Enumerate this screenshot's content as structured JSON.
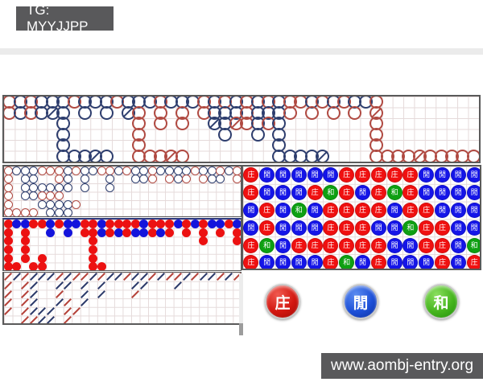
{
  "header": {
    "tg_label": "TG: MYYJJPP"
  },
  "footer": {
    "site_url": "www.aombj-entry.org"
  },
  "legend": {
    "banker": {
      "label": "庄",
      "color": "#d31710"
    },
    "player": {
      "label": "閒",
      "color": "#1d50d8"
    },
    "tie": {
      "label": "和",
      "color": "#46b51e"
    }
  },
  "colors": {
    "hollow_red": "#b04a42",
    "hollow_blue": "#2e3e6e",
    "solid_red": "#ec1111",
    "solid_blue": "#1414dc",
    "solid_green": "#0ea012",
    "badge_bg": "#59595b"
  },
  "roads": {
    "big_road": {
      "legend_note": "hollow circles, R/B uppercase = slashed (tie)",
      "rows": [
        "rbrbbbrbbbrbbbrbbbrbrbrbrbrrbrbrbbr.........",
        "rbrbBb.b.b.Br.r.r.rbbbrbbbr.r.r.r.R.........",
        ".....b......r.r.r..BbRrbrb........r.........",
        ".....b......r.......b..b.b........r.........",
        ".....b......r............b........r.........",
        ".....bbbBb..rrrRr........bbbbB....rrrrRrrrrr"
      ]
    },
    "small_road": {
      "rows": [
        "rbbbrrrbrbbrrbrbbrbbbbrbbrbr",
        "r.bb..rb.b..b..bbr.rbr.rbb.r",
        "r.bbbbbb.b..b...............",
        "r.bbrrr.....................",
        "r...bbbbr...................",
        "rrrr.bbb...................."
      ]
    },
    "solid_road": {
      "rows": [
        "rbbrrbrbbrrbrrrrbrrrbrbrbbrb",
        "r.r..b.b.rrbrbrbbrbr.r.r.r.r",
        "r.r.......r............r...r",
        "r.r.......r.................",
        "r.r.r.....r.................",
        "rr.rr.....rr................"
      ]
    },
    "cockroach_road": {
      "rows": [
        "rbrbbbrbrrbrbbrbbrbrrbrbbrbr",
        "r.rb..bb.b.b...bb...b.......",
        "r.rb..r..b.b...r............",
        "r.rb..br.b..................",
        "r.rbbb.rr...................",
        "..rrbb.r...................."
      ]
    },
    "bead_plate": {
      "symbols": {
        "r": "庄",
        "b": "閒",
        "g": "和"
      },
      "rows": [
        "rbbbbbrrrrrbbbb",
        "rbbbrgrbrgrbbbb",
        "brbgbrrrrbrrbbb",
        "brbbbrrrbbgrrbb",
        "rgbrrrrrrbbrrbg",
        "rbbbbrgbrbbbrbr"
      ]
    }
  }
}
